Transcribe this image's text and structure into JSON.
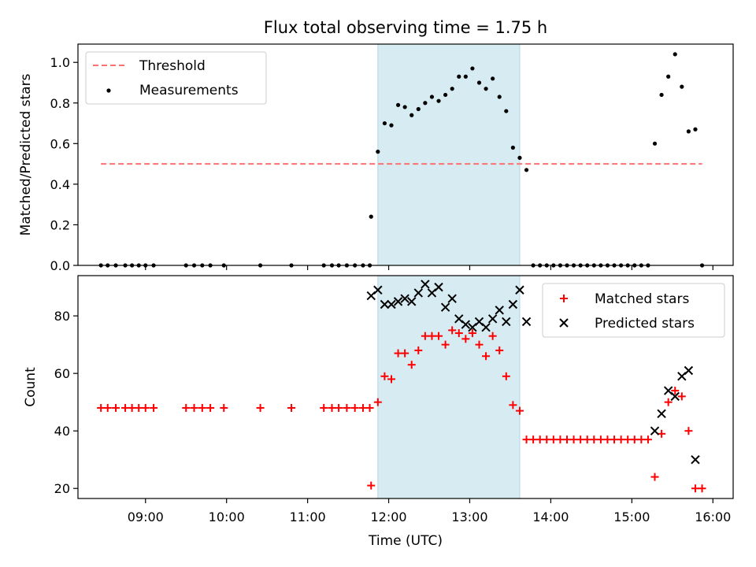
{
  "title": "Flux total observing time = 1.75 h",
  "chart_data": [
    {
      "type": "scatter",
      "ylabel": "Matched/Predicted stars",
      "xlim": [
        "08:10",
        "16:15"
      ],
      "ylim": [
        0,
        1.09
      ],
      "y_ticks": [
        "0.0",
        "0.2",
        "0.4",
        "0.6",
        "0.8",
        "1.0"
      ],
      "y_tick_values": [
        0,
        0.2,
        0.4,
        0.6,
        0.8,
        1.0
      ],
      "highlight_span": [
        "11:52",
        "13:37"
      ],
      "highlight_color": "#add8e6",
      "legend_position": "upper left",
      "threshold": {
        "name": "Threshold",
        "value": 0.5,
        "x_range": [
          "08:27",
          "15:52"
        ],
        "color": "#ff7070",
        "style": "dashed"
      },
      "series": [
        {
          "name": "Measurements",
          "color": "#000000",
          "points": [
            [
              "08:27",
              0
            ],
            [
              "08:32",
              0
            ],
            [
              "08:38",
              0
            ],
            [
              "08:45",
              0
            ],
            [
              "08:50",
              0
            ],
            [
              "08:55",
              0
            ],
            [
              "09:00",
              0
            ],
            [
              "09:06",
              0
            ],
            [
              "09:30",
              0
            ],
            [
              "09:36",
              0
            ],
            [
              "09:42",
              0
            ],
            [
              "09:48",
              0
            ],
            [
              "09:58",
              0
            ],
            [
              "10:25",
              0
            ],
            [
              "10:48",
              0
            ],
            [
              "11:12",
              0
            ],
            [
              "11:18",
              0
            ],
            [
              "11:23",
              0
            ],
            [
              "11:29",
              0
            ],
            [
              "11:35",
              0
            ],
            [
              "11:41",
              0
            ],
            [
              "11:46",
              0
            ],
            [
              "11:47",
              0.24
            ],
            [
              "11:52",
              0.56
            ],
            [
              "11:57",
              0.7
            ],
            [
              "12:02",
              0.69
            ],
            [
              "12:07",
              0.79
            ],
            [
              "12:12",
              0.78
            ],
            [
              "12:17",
              0.74
            ],
            [
              "12:22",
              0.77
            ],
            [
              "12:27",
              0.8
            ],
            [
              "12:32",
              0.83
            ],
            [
              "12:37",
              0.81
            ],
            [
              "12:42",
              0.84
            ],
            [
              "12:47",
              0.87
            ],
            [
              "12:52",
              0.93
            ],
            [
              "12:57",
              0.93
            ],
            [
              "13:02",
              0.97
            ],
            [
              "13:07",
              0.9
            ],
            [
              "13:12",
              0.87
            ],
            [
              "13:17",
              0.92
            ],
            [
              "13:22",
              0.83
            ],
            [
              "13:27",
              0.76
            ],
            [
              "13:32",
              0.58
            ],
            [
              "13:37",
              0.53
            ],
            [
              "13:42",
              0.47
            ],
            [
              "13:47",
              0
            ],
            [
              "13:52",
              0
            ],
            [
              "13:57",
              0
            ],
            [
              "14:02",
              0
            ],
            [
              "14:07",
              0
            ],
            [
              "14:12",
              0
            ],
            [
              "14:17",
              0
            ],
            [
              "14:22",
              0
            ],
            [
              "14:27",
              0
            ],
            [
              "14:32",
              0
            ],
            [
              "14:37",
              0
            ],
            [
              "14:42",
              0
            ],
            [
              "14:47",
              0
            ],
            [
              "14:52",
              0
            ],
            [
              "14:57",
              0
            ],
            [
              "15:02",
              0
            ],
            [
              "15:07",
              0
            ],
            [
              "15:12",
              0
            ],
            [
              "15:17",
              0.6
            ],
            [
              "15:22",
              0.84
            ],
            [
              "15:27",
              0.93
            ],
            [
              "15:32",
              1.04
            ],
            [
              "15:37",
              0.88
            ],
            [
              "15:42",
              0.66
            ],
            [
              "15:47",
              0.67
            ],
            [
              "15:52",
              0
            ]
          ]
        }
      ]
    },
    {
      "type": "scatter",
      "xlabel": "Time (UTC)",
      "ylabel": "Count",
      "xlim": [
        "08:10",
        "16:15"
      ],
      "ylim": [
        16.5,
        94
      ],
      "x_ticks": [
        "09:00",
        "10:00",
        "11:00",
        "12:00",
        "13:00",
        "14:00",
        "15:00",
        "16:00"
      ],
      "y_ticks": [
        "20",
        "40",
        "60",
        "80"
      ],
      "y_tick_values": [
        20,
        40,
        60,
        80
      ],
      "highlight_span": [
        "11:52",
        "13:37"
      ],
      "highlight_color": "#add8e6",
      "legend_position": "upper right",
      "series": [
        {
          "name": "Matched stars",
          "marker": "plus",
          "color": "#ff0000",
          "points": [
            [
              "08:27",
              48
            ],
            [
              "08:32",
              48
            ],
            [
              "08:38",
              48
            ],
            [
              "08:45",
              48
            ],
            [
              "08:50",
              48
            ],
            [
              "08:55",
              48
            ],
            [
              "09:00",
              48
            ],
            [
              "09:06",
              48
            ],
            [
              "09:30",
              48
            ],
            [
              "09:36",
              48
            ],
            [
              "09:42",
              48
            ],
            [
              "09:48",
              48
            ],
            [
              "09:58",
              48
            ],
            [
              "10:25",
              48
            ],
            [
              "10:48",
              48
            ],
            [
              "11:12",
              48
            ],
            [
              "11:18",
              48
            ],
            [
              "11:23",
              48
            ],
            [
              "11:29",
              48
            ],
            [
              "11:35",
              48
            ],
            [
              "11:41",
              48
            ],
            [
              "11:46",
              48
            ],
            [
              "11:47",
              21
            ],
            [
              "11:52",
              50
            ],
            [
              "11:57",
              59
            ],
            [
              "12:02",
              58
            ],
            [
              "12:07",
              67
            ],
            [
              "12:12",
              67
            ],
            [
              "12:17",
              63
            ],
            [
              "12:22",
              68
            ],
            [
              "12:27",
              73
            ],
            [
              "12:32",
              73
            ],
            [
              "12:37",
              73
            ],
            [
              "12:42",
              70
            ],
            [
              "12:47",
              75
            ],
            [
              "12:52",
              74
            ],
            [
              "12:57",
              72
            ],
            [
              "13:02",
              74
            ],
            [
              "13:07",
              70
            ],
            [
              "13:12",
              66
            ],
            [
              "13:17",
              73
            ],
            [
              "13:22",
              68
            ],
            [
              "13:27",
              59
            ],
            [
              "13:32",
              49
            ],
            [
              "13:37",
              47
            ],
            [
              "13:42",
              37
            ],
            [
              "13:47",
              37
            ],
            [
              "13:52",
              37
            ],
            [
              "13:57",
              37
            ],
            [
              "14:02",
              37
            ],
            [
              "14:07",
              37
            ],
            [
              "14:12",
              37
            ],
            [
              "14:17",
              37
            ],
            [
              "14:22",
              37
            ],
            [
              "14:27",
              37
            ],
            [
              "14:32",
              37
            ],
            [
              "14:37",
              37
            ],
            [
              "14:42",
              37
            ],
            [
              "14:47",
              37
            ],
            [
              "14:52",
              37
            ],
            [
              "14:57",
              37
            ],
            [
              "15:02",
              37
            ],
            [
              "15:07",
              37
            ],
            [
              "15:12",
              37
            ],
            [
              "15:17",
              24
            ],
            [
              "15:22",
              39
            ],
            [
              "15:27",
              50
            ],
            [
              "15:32",
              54
            ],
            [
              "15:37",
              52
            ],
            [
              "15:42",
              40
            ],
            [
              "15:47",
              20
            ],
            [
              "15:52",
              20
            ]
          ]
        },
        {
          "name": "Predicted stars",
          "marker": "x",
          "color": "#000000",
          "points": [
            [
              "11:47",
              87
            ],
            [
              "11:52",
              89
            ],
            [
              "11:57",
              84
            ],
            [
              "12:02",
              84
            ],
            [
              "12:07",
              85
            ],
            [
              "12:12",
              86
            ],
            [
              "12:17",
              85
            ],
            [
              "12:22",
              88
            ],
            [
              "12:27",
              91
            ],
            [
              "12:32",
              88
            ],
            [
              "12:37",
              90
            ],
            [
              "12:42",
              83
            ],
            [
              "12:47",
              86
            ],
            [
              "12:52",
              79
            ],
            [
              "12:57",
              77
            ],
            [
              "13:02",
              76
            ],
            [
              "13:07",
              78
            ],
            [
              "13:12",
              76
            ],
            [
              "13:17",
              79
            ],
            [
              "13:22",
              82
            ],
            [
              "13:27",
              78
            ],
            [
              "13:32",
              84
            ],
            [
              "13:37",
              89
            ],
            [
              "13:42",
              78
            ],
            [
              "15:17",
              40
            ],
            [
              "15:22",
              46
            ],
            [
              "15:27",
              54
            ],
            [
              "15:32",
              52
            ],
            [
              "15:37",
              59
            ],
            [
              "15:42",
              61
            ],
            [
              "15:47",
              30
            ]
          ]
        }
      ]
    }
  ]
}
